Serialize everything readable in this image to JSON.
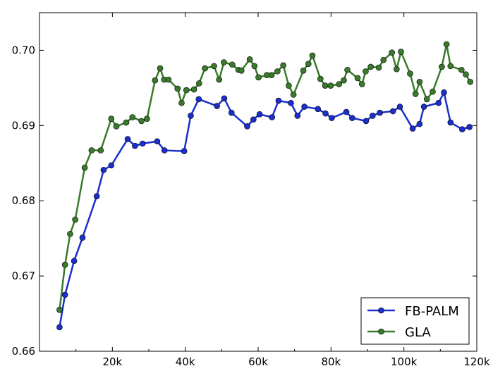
{
  "chart_data": {
    "type": "line",
    "title": "",
    "xlabel": "",
    "ylabel": "",
    "xlim": [
      0,
      120000
    ],
    "ylim": [
      0.66,
      0.705
    ],
    "grid": false,
    "legend_position": "bottom-right",
    "x_ticks": [
      {
        "value": 20000,
        "label": "20k"
      },
      {
        "value": 40000,
        "label": "40k"
      },
      {
        "value": 60000,
        "label": "60k"
      },
      {
        "value": 80000,
        "label": "80k"
      },
      {
        "value": 100000,
        "label": "100k"
      },
      {
        "value": 120000,
        "label": "120k"
      }
    ],
    "y_ticks": [
      {
        "value": 0.66,
        "label": "0.66"
      },
      {
        "value": 0.67,
        "label": "0.67"
      },
      {
        "value": 0.68,
        "label": "0.68"
      },
      {
        "value": 0.69,
        "label": "0.69"
      },
      {
        "value": 0.7,
        "label": "0.70"
      }
    ],
    "series": [
      {
        "name": "FB-PALM",
        "color": "#1a2fcc",
        "points": [
          [
            5500,
            0.6632
          ],
          [
            7000,
            0.6675
          ],
          [
            9500,
            0.672
          ],
          [
            11800,
            0.6751
          ],
          [
            15700,
            0.6806
          ],
          [
            17600,
            0.6841
          ],
          [
            19700,
            0.6847
          ],
          [
            24200,
            0.6882
          ],
          [
            26200,
            0.6873
          ],
          [
            28300,
            0.6876
          ],
          [
            32300,
            0.6879
          ],
          [
            34300,
            0.6867
          ],
          [
            39700,
            0.6866
          ],
          [
            41500,
            0.6913
          ],
          [
            43700,
            0.6935
          ],
          [
            48700,
            0.6926
          ],
          [
            50700,
            0.6936
          ],
          [
            52700,
            0.6917
          ],
          [
            57000,
            0.6899
          ],
          [
            58700,
            0.6908
          ],
          [
            60400,
            0.6915
          ],
          [
            63800,
            0.6911
          ],
          [
            65600,
            0.6933
          ],
          [
            69000,
            0.693
          ],
          [
            70800,
            0.6913
          ],
          [
            72700,
            0.6925
          ],
          [
            76400,
            0.6922
          ],
          [
            78500,
            0.6916
          ],
          [
            80200,
            0.691
          ],
          [
            84200,
            0.6918
          ],
          [
            85800,
            0.691
          ],
          [
            89600,
            0.6906
          ],
          [
            91400,
            0.6913
          ],
          [
            93400,
            0.6917
          ],
          [
            97000,
            0.6919
          ],
          [
            98900,
            0.6925
          ],
          [
            102400,
            0.6896
          ],
          [
            104300,
            0.6902
          ],
          [
            105500,
            0.6925
          ],
          [
            109500,
            0.693
          ],
          [
            111000,
            0.6944
          ],
          [
            112800,
            0.6904
          ],
          [
            116000,
            0.6895
          ],
          [
            118000,
            0.6898
          ]
        ]
      },
      {
        "name": "GLA",
        "color": "#3a7a2b",
        "points": [
          [
            5500,
            0.6655
          ],
          [
            7000,
            0.6715
          ],
          [
            8400,
            0.6756
          ],
          [
            9800,
            0.6775
          ],
          [
            12400,
            0.6844
          ],
          [
            14300,
            0.6867
          ],
          [
            16800,
            0.6867
          ],
          [
            19700,
            0.6909
          ],
          [
            21100,
            0.6899
          ],
          [
            23800,
            0.6904
          ],
          [
            25500,
            0.6911
          ],
          [
            28000,
            0.6906
          ],
          [
            29500,
            0.6909
          ],
          [
            31700,
            0.696
          ],
          [
            33100,
            0.6976
          ],
          [
            34200,
            0.6961
          ],
          [
            35400,
            0.6961
          ],
          [
            37900,
            0.6949
          ],
          [
            39000,
            0.693
          ],
          [
            40300,
            0.6947
          ],
          [
            42400,
            0.6948
          ],
          [
            43800,
            0.6956
          ],
          [
            45400,
            0.6976
          ],
          [
            47900,
            0.6979
          ],
          [
            49300,
            0.6961
          ],
          [
            50600,
            0.6984
          ],
          [
            52900,
            0.6981
          ],
          [
            54600,
            0.6974
          ],
          [
            55400,
            0.6973
          ],
          [
            57700,
            0.6988
          ],
          [
            59000,
            0.6979
          ],
          [
            60100,
            0.6964
          ],
          [
            62400,
            0.6967
          ],
          [
            63700,
            0.6967
          ],
          [
            65300,
            0.6972
          ],
          [
            66900,
            0.698
          ],
          [
            68400,
            0.6953
          ],
          [
            69700,
            0.6941
          ],
          [
            72400,
            0.6973
          ],
          [
            73800,
            0.6982
          ],
          [
            74900,
            0.6993
          ],
          [
            77100,
            0.6962
          ],
          [
            78400,
            0.6953
          ],
          [
            79900,
            0.6953
          ],
          [
            82200,
            0.6955
          ],
          [
            83500,
            0.696
          ],
          [
            84500,
            0.6974
          ],
          [
            87300,
            0.6963
          ],
          [
            88500,
            0.6955
          ],
          [
            89500,
            0.6972
          ],
          [
            90900,
            0.6978
          ],
          [
            93100,
            0.6977
          ],
          [
            94400,
            0.6987
          ],
          [
            96700,
            0.6997
          ],
          [
            98000,
            0.6975
          ],
          [
            99200,
            0.6998
          ],
          [
            101700,
            0.6969
          ],
          [
            103200,
            0.6942
          ],
          [
            104300,
            0.6958
          ],
          [
            106300,
            0.6935
          ],
          [
            107900,
            0.6945
          ],
          [
            110400,
            0.6978
          ],
          [
            111700,
            0.7008
          ],
          [
            112800,
            0.6979
          ],
          [
            115800,
            0.6974
          ],
          [
            117000,
            0.6968
          ],
          [
            118200,
            0.6958
          ]
        ]
      }
    ]
  }
}
